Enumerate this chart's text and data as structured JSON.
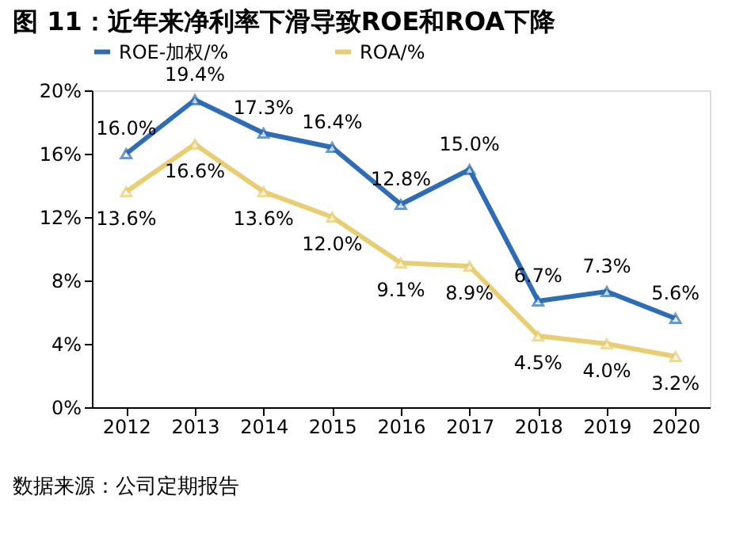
{
  "chart_data": {
    "type": "line",
    "title": "图 11：近年来净利率下滑导致ROE和ROA下降",
    "categories": [
      "2012",
      "2013",
      "2014",
      "2015",
      "2016",
      "2017",
      "2018",
      "2019",
      "2020"
    ],
    "series": [
      {
        "name": "ROE-加权/%",
        "color": "#2e6db4",
        "values": [
          16.0,
          19.4,
          17.3,
          16.4,
          12.8,
          15.0,
          6.7,
          7.3,
          5.6
        ],
        "value_labels": [
          "16.0%",
          "19.4%",
          "17.3%",
          "16.4%",
          "12.8%",
          "15.0%",
          "6.7%",
          "7.3%",
          "5.6%"
        ]
      },
      {
        "name": "ROA/%",
        "color": "#e8cd72",
        "values": [
          13.6,
          16.6,
          13.6,
          12.0,
          9.1,
          8.9,
          4.5,
          4.0,
          3.2
        ],
        "value_labels": [
          "13.6%",
          "16.6%",
          "13.6%",
          "12.0%",
          "9.1%",
          "8.9%",
          "4.5%",
          "4.0%",
          "3.2%"
        ]
      }
    ],
    "ylim": [
      0,
      20
    ],
    "yticks": [
      {
        "value": 0,
        "label": "0%"
      },
      {
        "value": 4,
        "label": "4%"
      },
      {
        "value": 8,
        "label": "8%"
      },
      {
        "value": 12,
        "label": "12%"
      },
      {
        "value": 16,
        "label": "16%"
      },
      {
        "value": 20,
        "label": "20%"
      }
    ],
    "marker": "triangle",
    "line_style": "solid",
    "grid": false,
    "legend": "top",
    "annotations": [
      "数据来源：公司定期报告"
    ]
  }
}
